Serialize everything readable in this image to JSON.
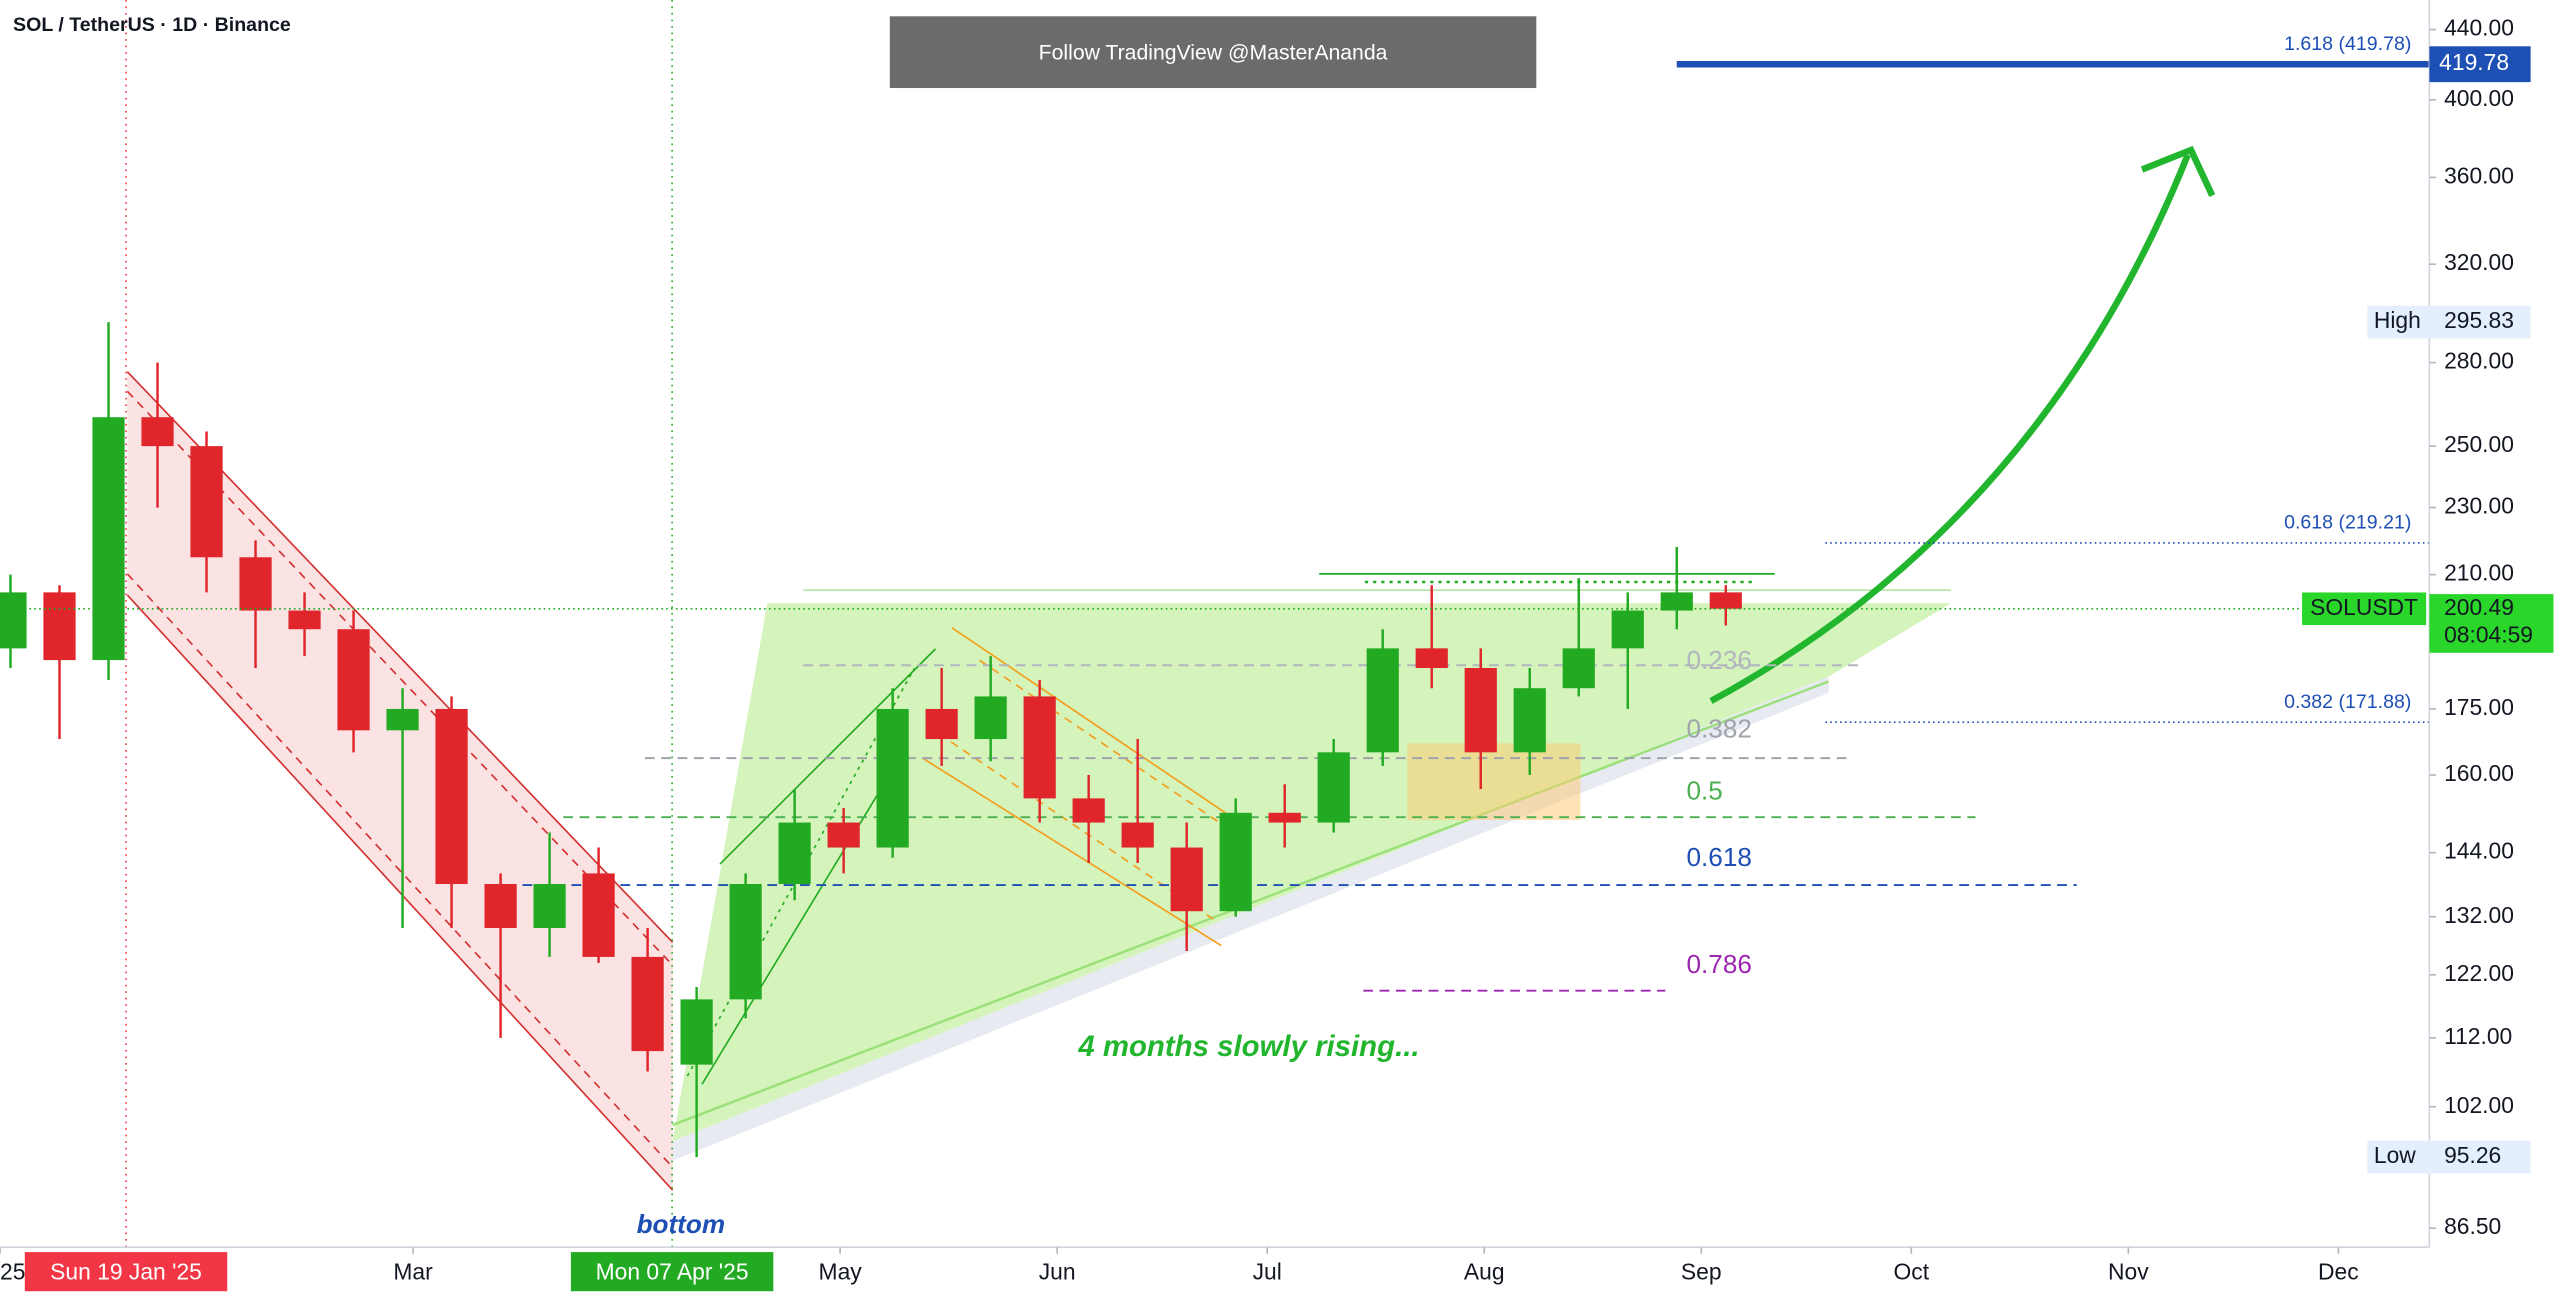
{
  "header": {
    "symbol": "SOL / TetherUS · 1D · Binance",
    "banner": "Follow TradingView @MasterAnanda"
  },
  "annotations": {
    "rising_note": "4 months slowly rising...",
    "bottom_note": "bottom"
  },
  "chart_data": {
    "type": "candlestick",
    "symbol_tag": "SOLUSDT",
    "countdown": "08:04:59",
    "high_label": "High",
    "low_label": "Low",
    "log_scale": true,
    "up_color": "#22ab22",
    "down_color": "#e0252b",
    "x": [
      "2024-12-30",
      "2025-01-06",
      "2025-01-13",
      "2025-01-20",
      "2025-01-27",
      "2025-02-03",
      "2025-02-10",
      "2025-02-17",
      "2025-02-24",
      "2025-03-03",
      "2025-03-10",
      "2025-03-17",
      "2025-03-24",
      "2025-03-31",
      "2025-04-07",
      "2025-04-14",
      "2025-04-21",
      "2025-04-28",
      "2025-05-05",
      "2025-05-12",
      "2025-05-19",
      "2025-05-26",
      "2025-06-02",
      "2025-06-09",
      "2025-06-16",
      "2025-06-23",
      "2025-06-30",
      "2025-07-07",
      "2025-07-14",
      "2025-07-21",
      "2025-07-28",
      "2025-08-04",
      "2025-08-11",
      "2025-08-18",
      "2025-08-25",
      "2025-09-01"
    ],
    "open": [
      190,
      205,
      187,
      260,
      250,
      215,
      200,
      195,
      170,
      175,
      138,
      130,
      140,
      125,
      108,
      118,
      138,
      150,
      145,
      175,
      168,
      178,
      155,
      150,
      145,
      133,
      152,
      150,
      165,
      190,
      185,
      165,
      180,
      190,
      200,
      205
    ],
    "high": [
      210,
      207,
      295.83,
      280,
      255,
      220,
      205,
      200,
      180,
      178,
      140,
      148,
      145,
      130,
      120,
      140,
      157,
      153,
      180,
      185,
      188,
      182,
      160,
      168,
      150,
      155,
      158,
      168,
      195,
      207,
      190,
      185,
      209,
      205,
      218,
      207
    ],
    "low": [
      185,
      168,
      182,
      230,
      205,
      185,
      188,
      165,
      130,
      130,
      112,
      125,
      124,
      107,
      95.26,
      115,
      135,
      140,
      143,
      162,
      163,
      150,
      142,
      142,
      126,
      132,
      145,
      148,
      162,
      180,
      157,
      160,
      178,
      175,
      195,
      196
    ],
    "close": [
      205,
      187,
      260,
      250,
      215,
      200,
      195,
      170,
      175,
      138,
      130,
      138,
      125,
      110,
      118,
      138,
      150,
      145,
      175,
      168,
      178,
      155,
      150,
      145,
      133,
      152,
      150,
      165,
      190,
      185,
      165,
      180,
      190,
      200,
      205,
      200.49
    ],
    "xlim": [
      "2025-01-01",
      "2025-12-14"
    ],
    "xticks": [
      {
        "value": "2025-01-01",
        "label": "25"
      },
      {
        "value": "2025-03-01",
        "label": "Mar"
      },
      {
        "value": "2025-05-01",
        "label": "May"
      },
      {
        "value": "2025-06-01",
        "label": "Jun"
      },
      {
        "value": "2025-07-01",
        "label": "Jul"
      },
      {
        "value": "2025-08-01",
        "label": "Aug"
      },
      {
        "value": "2025-09-01",
        "label": "Sep"
      },
      {
        "value": "2025-10-01",
        "label": "Oct"
      },
      {
        "value": "2025-11-01",
        "label": "Nov"
      },
      {
        "value": "2025-12-01",
        "label": "Dec"
      }
    ],
    "ylim": [
      84.3,
      458
    ],
    "yticks": [
      {
        "value": 440,
        "label": "440.00"
      },
      {
        "value": 400,
        "label": "400.00"
      },
      {
        "value": 360,
        "label": "360.00"
      },
      {
        "value": 320,
        "label": "320.00"
      },
      {
        "value": 280,
        "label": "280.00"
      },
      {
        "value": 250,
        "label": "250.00"
      },
      {
        "value": 230,
        "label": "230.00"
      },
      {
        "value": 210,
        "label": "210.00"
      },
      {
        "value": 175,
        "label": "175.00"
      },
      {
        "value": 160,
        "label": "160.00"
      },
      {
        "value": 144,
        "label": "144.00"
      },
      {
        "value": 132,
        "label": "132.00"
      },
      {
        "value": 122,
        "label": "122.00"
      },
      {
        "value": 112,
        "label": "112.00"
      },
      {
        "value": 102,
        "label": "102.00"
      },
      {
        "value": 86.5,
        "label": "86.50"
      }
    ],
    "crosshair": [
      {
        "date": "2025-01-19",
        "label": "Sun 19 Jan '25",
        "color": "#f23645"
      },
      {
        "date": "2025-04-07",
        "label": "Mon 07 Apr '25",
        "color": "#22ab22"
      }
    ],
    "fib_extension": [
      {
        "label": "1.618 (419.78)",
        "price": 419.78,
        "color": "#1e4fb4",
        "style": "solid"
      },
      {
        "label": "0.618 (219.21)",
        "price": 219.21,
        "color": "#1e4fb4",
        "style": "dotted"
      },
      {
        "label": "0.382 (171.88)",
        "price": 171.88,
        "color": "#1e4fb4",
        "style": "dotted"
      }
    ],
    "fib_retracement": [
      {
        "level": 0.236,
        "price": 185.7,
        "color": "#b2b5be"
      },
      {
        "level": 0.382,
        "price": 163.7,
        "color": "#a0a3ab"
      },
      {
        "level": 0.5,
        "price": 151.1,
        "color": "#4caf50"
      },
      {
        "level": 0.618,
        "price": 137.8,
        "color": "#1e4fb4"
      },
      {
        "level": 0.786,
        "price": 119.4,
        "color": "#9c27b0"
      }
    ]
  }
}
